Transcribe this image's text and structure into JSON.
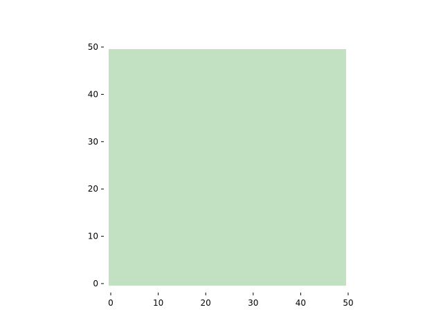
{
  "chart_data": {
    "type": "heatmap",
    "title": "",
    "xlabel": "",
    "ylabel": "",
    "xlim": [
      0,
      50
    ],
    "ylim": [
      0,
      50
    ],
    "x_ticks": [
      0,
      10,
      20,
      30,
      40,
      50
    ],
    "y_ticks": [
      0,
      10,
      20,
      30,
      40,
      50
    ],
    "x_tick_labels": [
      "0",
      "10",
      "20",
      "30",
      "40",
      "50"
    ],
    "y_tick_labels": [
      "0",
      "10",
      "20",
      "30",
      "40",
      "50"
    ],
    "grid": false,
    "spines_visible": false,
    "regions": [
      {
        "x": [
          0,
          50
        ],
        "y": [
          0,
          50
        ],
        "color": "#c2e0c2"
      }
    ]
  }
}
